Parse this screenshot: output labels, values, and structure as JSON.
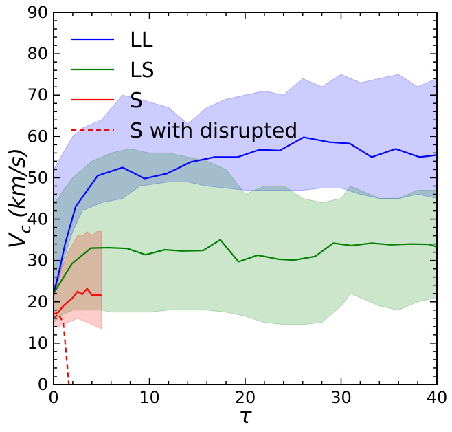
{
  "chart_data": {
    "type": "line",
    "title": "",
    "xlabel": "τ",
    "ylabel_main": "V",
    "ylabel_sub": "c",
    "ylabel_unit": " (km/s)",
    "xlim": [
      0,
      40
    ],
    "ylim": [
      0,
      90
    ],
    "xticks": [
      0,
      10,
      20,
      30,
      40
    ],
    "yticks": [
      0,
      10,
      20,
      30,
      40,
      50,
      60,
      70,
      80,
      90
    ],
    "grid": false,
    "legend_position": "top-left",
    "bands": [
      {
        "series": "LL",
        "color": "#0000ff",
        "opacity": 0.2,
        "x": [
          0,
          0.5,
          1,
          2,
          3,
          5,
          7.2,
          9,
          12,
          14,
          16,
          18,
          20,
          22,
          24,
          26,
          28,
          30,
          32,
          34,
          36,
          38,
          40
        ],
        "upper": [
          52,
          54,
          56,
          60,
          62,
          64,
          70,
          69,
          67,
          63,
          67,
          69,
          70,
          71,
          70,
          74,
          72,
          75,
          73,
          74,
          75,
          72,
          74
        ],
        "lower": [
          21,
          25,
          30,
          37,
          42,
          44,
          45,
          48,
          49,
          49,
          48,
          47.5,
          47,
          47,
          47,
          47,
          47.5,
          47.5,
          46,
          45,
          45,
          46,
          45
        ]
      },
      {
        "series": "LS",
        "color": "#008000",
        "opacity": 0.2,
        "x": [
          0,
          0.5,
          1,
          2,
          3,
          4,
          5,
          6,
          8,
          10,
          12,
          14,
          16,
          18,
          20,
          22,
          24,
          26,
          28,
          30,
          31,
          32,
          34,
          36,
          38,
          40
        ],
        "upper": [
          44,
          45,
          47,
          50,
          52,
          54,
          55,
          56,
          57,
          56,
          56,
          55,
          54,
          52,
          46,
          48,
          48,
          45,
          44,
          45,
          48,
          47,
          45,
          45,
          47,
          47
        ],
        "lower": [
          15,
          16,
          17,
          18,
          18,
          18,
          18,
          17.5,
          17.5,
          17.5,
          18,
          18,
          18,
          17.5,
          16.5,
          15,
          14.5,
          14.5,
          15,
          19,
          22,
          21,
          19,
          18,
          20,
          21
        ]
      },
      {
        "series": "S",
        "color": "#ff0000",
        "opacity": 0.2,
        "x": [
          0,
          0.5,
          1,
          1.5,
          2,
          2.5,
          3,
          3.5,
          4,
          4.5,
          5
        ],
        "upper": [
          22,
          27,
          29,
          32,
          34,
          36,
          36,
          37,
          36,
          37,
          37
        ],
        "lower": [
          14,
          14,
          14.5,
          15,
          15.5,
          16,
          15.5,
          15,
          14.5,
          14,
          13.5
        ]
      }
    ],
    "series": [
      {
        "name": "LL",
        "color": "#0000ff",
        "dash": false,
        "x": [
          0,
          0.6,
          1.2,
          2.3,
          4.6,
          7.2,
          9.5,
          11.8,
          14.3,
          16.8,
          19.2,
          21.5,
          23.6,
          26.1,
          28.8,
          30.9,
          33.2,
          35.7,
          38.2,
          40
        ],
        "y": [
          22,
          27.5,
          34,
          43,
          50.5,
          52.5,
          49.8,
          51,
          53.8,
          55,
          55,
          56.8,
          56.6,
          59.8,
          58.6,
          58.3,
          55,
          57,
          55,
          55.5
        ]
      },
      {
        "name": "LS",
        "color": "#008000",
        "dash": false,
        "x": [
          0,
          1.9,
          3.9,
          5.7,
          7.7,
          9.6,
          11.6,
          13.4,
          15.6,
          17.4,
          19.3,
          21.3,
          23.5,
          25.1,
          27.3,
          29.2,
          31.1,
          33.2,
          35.2,
          37.3,
          39.2,
          40
        ],
        "y": [
          22,
          29.2,
          33,
          33.1,
          32.9,
          31.4,
          32.6,
          32.3,
          32.4,
          35,
          29.7,
          31.3,
          30.3,
          30.1,
          31,
          34.2,
          33.6,
          34.2,
          33.8,
          34,
          33.9,
          33.3
        ]
      },
      {
        "name": "S",
        "color": "#ff0000",
        "dash": false,
        "x": [
          0,
          0.5,
          1,
          1.5,
          2,
          2.5,
          3,
          3.5,
          4,
          4.5,
          5
        ],
        "y": [
          17,
          17.5,
          19,
          20,
          21,
          22.5,
          21.8,
          23.2,
          21.6,
          21.6,
          21.6
        ]
      },
      {
        "name": "S with disrupted",
        "color": "#ff0000",
        "dash": true,
        "x": [
          0,
          0.5,
          1,
          1.3,
          1.6
        ],
        "y": [
          16,
          17,
          15,
          8,
          0
        ]
      }
    ]
  }
}
